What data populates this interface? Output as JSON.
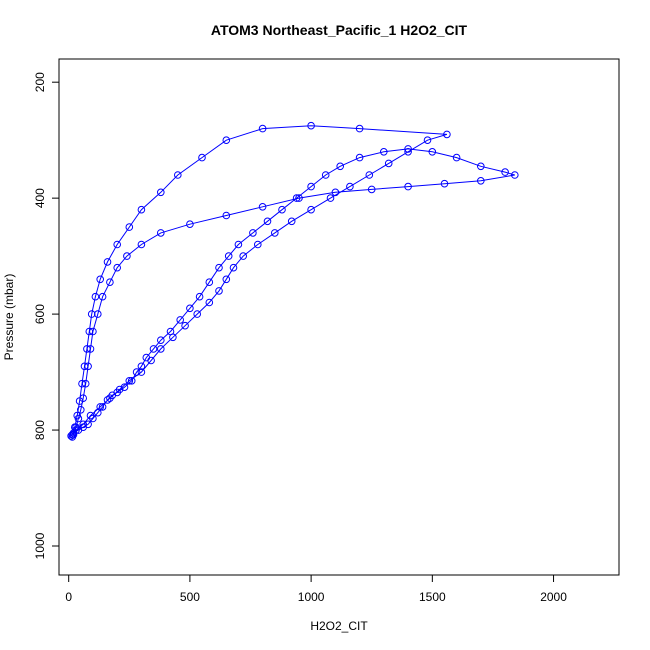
{
  "chart_data": {
    "type": "scatter",
    "title": "ATOM3 Northeast_Pacific_1 H2O2_CIT",
    "xlabel": "H2O2_CIT",
    "ylabel": "Pressure (mbar)",
    "xlim": [
      -40,
      2270
    ],
    "ylim": [
      1050,
      160
    ],
    "y_reversed": true,
    "x_ticks": [
      "0",
      "500",
      "1000",
      "1500",
      "2000"
    ],
    "x_tick_values": [
      0,
      500,
      1000,
      1500,
      2000
    ],
    "y_ticks": [
      "200",
      "400",
      "600",
      "800",
      "1000"
    ],
    "y_tick_values": [
      200,
      400,
      600,
      800,
      1000
    ],
    "grid": false,
    "legend": "none",
    "color": "#0000ff",
    "series": [
      {
        "values": [
          [
            10,
            810
          ],
          [
            20,
            805
          ],
          [
            40,
            800
          ],
          [
            60,
            795
          ],
          [
            80,
            790
          ],
          [
            100,
            780
          ],
          [
            120,
            770
          ],
          [
            140,
            760
          ],
          [
            160,
            748
          ],
          [
            180,
            740
          ],
          [
            200,
            735
          ],
          [
            230,
            726
          ],
          [
            260,
            715
          ],
          [
            280,
            700
          ],
          [
            300,
            690
          ],
          [
            320,
            675
          ],
          [
            350,
            660
          ],
          [
            380,
            645
          ],
          [
            420,
            630
          ],
          [
            460,
            610
          ],
          [
            500,
            590
          ],
          [
            540,
            570
          ],
          [
            580,
            545
          ],
          [
            620,
            520
          ],
          [
            660,
            500
          ],
          [
            700,
            480
          ],
          [
            760,
            460
          ],
          [
            820,
            440
          ],
          [
            880,
            420
          ],
          [
            940,
            400
          ],
          [
            1000,
            380
          ],
          [
            1060,
            360
          ],
          [
            1120,
            345
          ],
          [
            1200,
            330
          ],
          [
            1300,
            320
          ],
          [
            1400,
            315
          ],
          [
            1500,
            320
          ],
          [
            1600,
            330
          ],
          [
            1700,
            345
          ],
          [
            1800,
            355
          ],
          [
            1840,
            360
          ],
          [
            1700,
            370
          ],
          [
            1550,
            375
          ],
          [
            1400,
            380
          ],
          [
            1250,
            385
          ],
          [
            1100,
            390
          ],
          [
            950,
            400
          ],
          [
            800,
            415
          ],
          [
            650,
            430
          ],
          [
            500,
            445
          ],
          [
            380,
            460
          ],
          [
            300,
            480
          ],
          [
            240,
            500
          ],
          [
            200,
            520
          ],
          [
            170,
            545
          ],
          [
            140,
            570
          ],
          [
            120,
            600
          ],
          [
            100,
            630
          ],
          [
            90,
            660
          ],
          [
            80,
            690
          ],
          [
            70,
            720
          ],
          [
            60,
            745
          ],
          [
            50,
            765
          ],
          [
            40,
            780
          ],
          [
            30,
            795
          ],
          [
            20,
            808
          ],
          [
            15,
            812
          ],
          [
            30,
            800
          ],
          [
            60,
            790
          ],
          [
            90,
            775
          ],
          [
            130,
            760
          ],
          [
            170,
            745
          ],
          [
            210,
            730
          ],
          [
            250,
            715
          ],
          [
            300,
            700
          ],
          [
            340,
            680
          ],
          [
            380,
            660
          ],
          [
            430,
            640
          ],
          [
            480,
            620
          ],
          [
            530,
            600
          ],
          [
            580,
            580
          ],
          [
            620,
            560
          ],
          [
            650,
            540
          ],
          [
            680,
            520
          ],
          [
            720,
            500
          ],
          [
            780,
            480
          ],
          [
            850,
            460
          ],
          [
            920,
            440
          ],
          [
            1000,
            420
          ],
          [
            1080,
            400
          ],
          [
            1160,
            380
          ],
          [
            1240,
            360
          ],
          [
            1320,
            340
          ],
          [
            1400,
            320
          ],
          [
            1480,
            300
          ],
          [
            1560,
            290
          ],
          [
            1200,
            280
          ],
          [
            1000,
            275
          ],
          [
            800,
            280
          ],
          [
            650,
            300
          ],
          [
            550,
            330
          ],
          [
            450,
            360
          ],
          [
            380,
            390
          ],
          [
            300,
            420
          ],
          [
            250,
            450
          ],
          [
            200,
            480
          ],
          [
            160,
            510
          ],
          [
            130,
            540
          ],
          [
            110,
            570
          ],
          [
            95,
            600
          ],
          [
            85,
            630
          ],
          [
            75,
            660
          ],
          [
            65,
            690
          ],
          [
            55,
            720
          ],
          [
            45,
            750
          ],
          [
            35,
            775
          ],
          [
            25,
            795
          ],
          [
            15,
            808
          ]
        ]
      }
    ]
  }
}
